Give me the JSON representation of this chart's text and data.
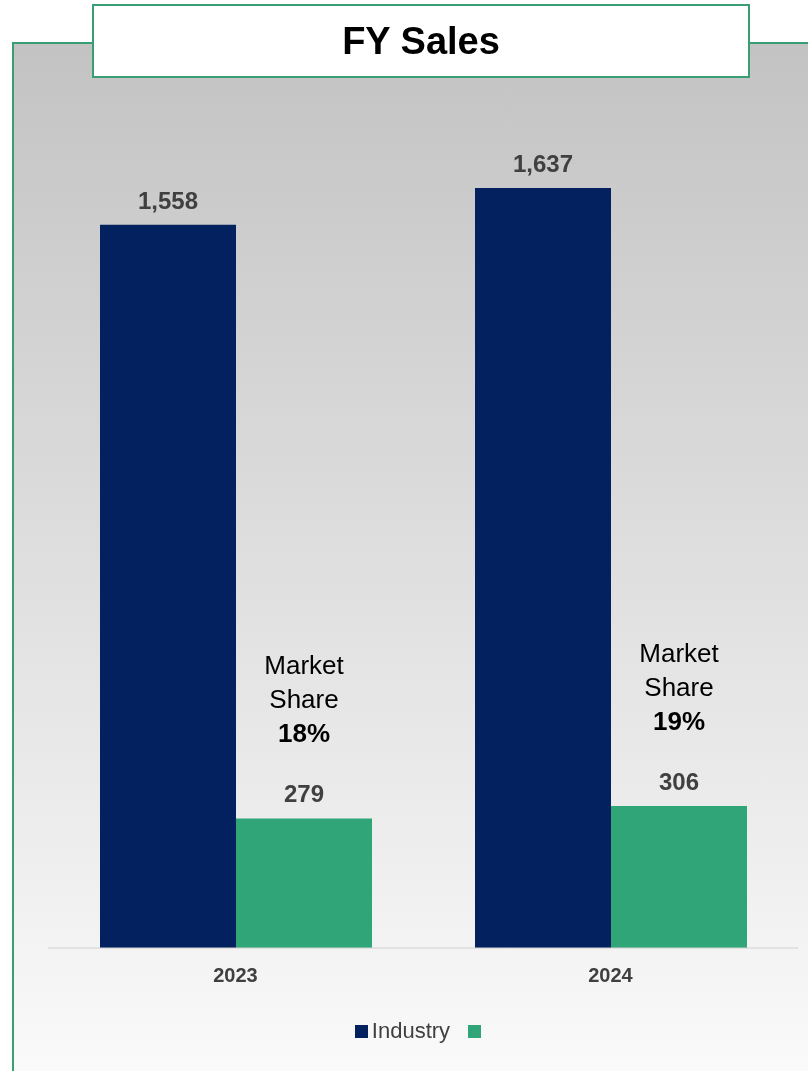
{
  "chart_data": {
    "type": "bar",
    "title": "FY Sales",
    "categories": [
      "2023",
      "2024"
    ],
    "series": [
      {
        "name": "Industry",
        "color": "#03215e",
        "values": [
          1558,
          1637
        ],
        "value_labels": [
          "1,558",
          "1,637"
        ]
      },
      {
        "color": "#30a577",
        "values": [
          279,
          306
        ],
        "value_labels": [
          "279",
          "306"
        ]
      }
    ],
    "legend": "bottom",
    "annotations": [
      {
        "text": "Market Share 18%",
        "x": "2023"
      },
      {
        "text": "Market Share 19%",
        "x": "2024"
      }
    ]
  }
}
